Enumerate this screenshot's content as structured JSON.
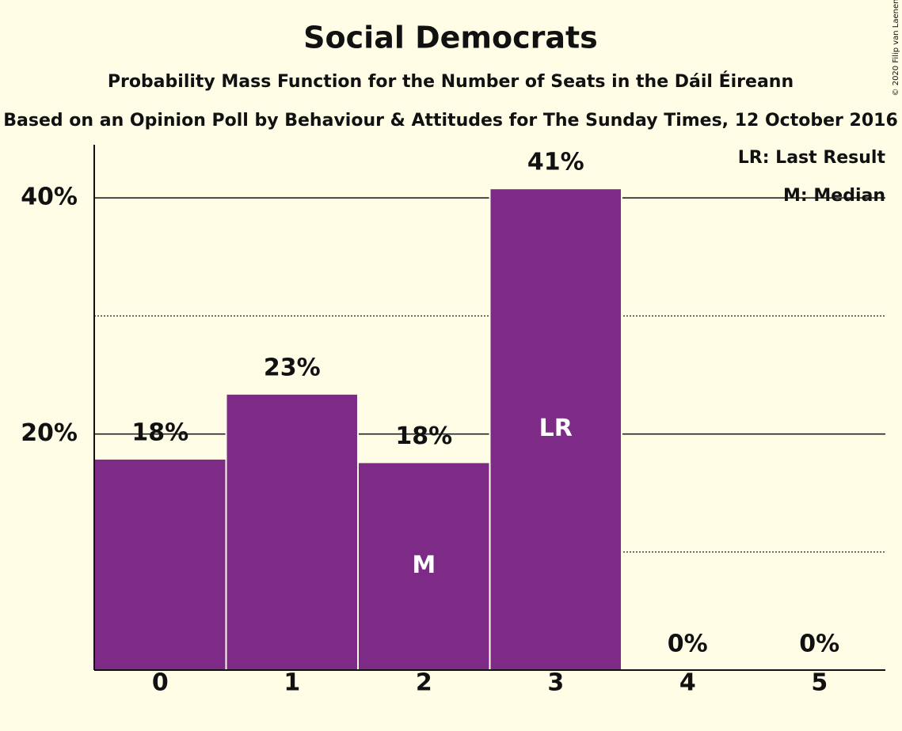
{
  "chart_data": {
    "type": "bar",
    "title": "Social Democrats",
    "subtitle": "Probability Mass Function for the Number of Seats in the Dáil Éireann",
    "caption": "Based on an Opinion Poll by Behaviour & Attitudes for The Sunday Times, 12 October 2016",
    "copyright": "© 2020 Filip van Laenen",
    "categories": [
      "0",
      "1",
      "2",
      "3",
      "4",
      "5"
    ],
    "values": [
      17.9,
      23.4,
      17.6,
      40.8,
      0,
      0
    ],
    "value_labels": [
      "18%",
      "23%",
      "18%",
      "41%",
      "0%",
      "0%"
    ],
    "bar_labels": [
      null,
      null,
      "M",
      "LR",
      null,
      null
    ],
    "legend_notes": [
      "LR: Last Result",
      "M: Median"
    ],
    "color": "#7e2a87",
    "ylim": [
      0,
      44.5
    ],
    "yticks": [
      {
        "value": 20,
        "label": "20%"
      },
      {
        "value": 40,
        "label": "40%"
      }
    ],
    "yminor": [
      10,
      30
    ],
    "grid": true
  }
}
